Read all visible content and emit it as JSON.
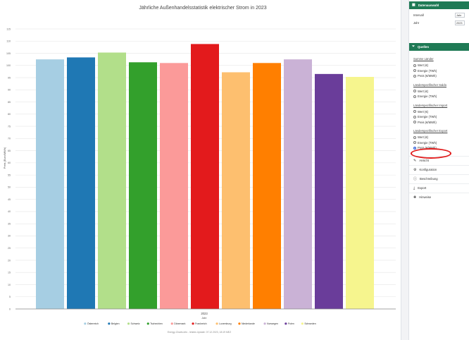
{
  "chart_data": {
    "type": "bar",
    "title": "Jährliche Außenhandelsstatistik elektrischer Strom in 2023",
    "xlabel": "Jahr",
    "ylabel": "Preis (Euro/MWh)",
    "category": "2023",
    "ylim": [
      0,
      115
    ],
    "yticks": [
      0,
      5,
      10,
      15,
      20,
      25,
      30,
      35,
      40,
      45,
      50,
      55,
      60,
      65,
      70,
      75,
      80,
      85,
      90,
      95,
      100,
      105,
      110,
      115
    ],
    "grid": true,
    "legend_position": "bottom",
    "series": [
      {
        "name": "Österreich",
        "value": 102.5,
        "color": "#a6cee3"
      },
      {
        "name": "Belgien",
        "value": 103.3,
        "color": "#1f78b4"
      },
      {
        "name": "Schweiz",
        "value": 105.3,
        "color": "#b2df8a"
      },
      {
        "name": "Tschechien",
        "value": 101.3,
        "color": "#33a02c"
      },
      {
        "name": "Dänemark",
        "value": 101.0,
        "color": "#fb9a99"
      },
      {
        "name": "Frankreich",
        "value": 108.8,
        "color": "#e31a1c"
      },
      {
        "name": "Luxemburg",
        "value": 97.2,
        "color": "#fdbf6f"
      },
      {
        "name": "Niederlande",
        "value": 101.0,
        "color": "#ff7f00"
      },
      {
        "name": "Norwegen",
        "value": 102.5,
        "color": "#cab2d6"
      },
      {
        "name": "Polen",
        "value": 96.5,
        "color": "#6a3d9a"
      },
      {
        "name": "Schweden",
        "value": 95.3,
        "color": "#f6f58e"
      }
    ],
    "credits": "Energy-Charts.info - letztes Update: 07.12.2023, 18:19 MEZ"
  },
  "sidebar": {
    "data_selection": {
      "title": "Datenauswahl",
      "fields": [
        {
          "label": "Intervall",
          "value": "Jahr"
        },
        {
          "label": "Jahr",
          "value": "2023"
        }
      ]
    },
    "sources": {
      "title": "Quellen",
      "groups": [
        {
          "title": "Summe Länder",
          "options": [
            "Wert (€)",
            "Energie (TWh)",
            "Preis (€/MWh)"
          ],
          "selected": -1
        },
        {
          "title": "Länderspezifischer Saldo",
          "options": [
            "Wert (€)",
            "Energie (TWh)"
          ],
          "selected": -1
        },
        {
          "title": "Länderspezifischer Import",
          "options": [
            "Wert (€)",
            "Energie (TWh)",
            "Preis (€/MWh)"
          ],
          "selected": -1
        },
        {
          "title": "Länderspezifischer Export",
          "options": [
            "Wert (€)",
            "Energie (TWh)",
            "Preis (€/MWh)"
          ],
          "selected": 2
        }
      ]
    },
    "folds": [
      {
        "label": "Ansicht",
        "icon": "paint-icon"
      },
      {
        "label": "Konfiguration",
        "icon": "gear-icon"
      },
      {
        "label": "Beschreibung",
        "icon": "info-icon"
      },
      {
        "label": "Export",
        "icon": "download-icon"
      },
      {
        "label": "Hinweise",
        "icon": "plus-icon"
      }
    ],
    "accent": "#1f7a55"
  }
}
